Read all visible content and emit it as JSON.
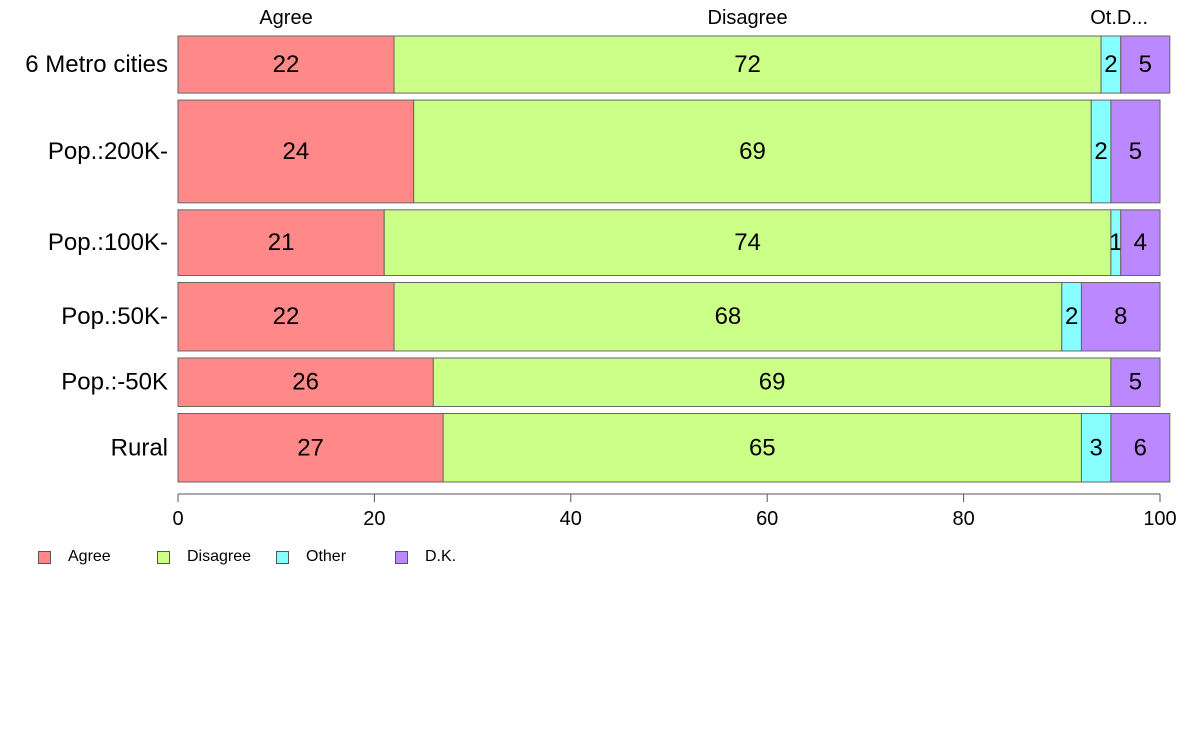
{
  "chart_data": {
    "type": "bar",
    "orientation": "horizontal",
    "stacked": true,
    "categories": [
      "6 Metro cities",
      "Pop.:200K-",
      "Pop.:100K-",
      "Pop.:50K-",
      "Pop.:-50K",
      "Rural"
    ],
    "series": [
      {
        "name": "Agree",
        "color": "#ff8888",
        "values": [
          22,
          24,
          21,
          22,
          26,
          27
        ],
        "labels": [
          "22",
          "24",
          "21",
          "22",
          "26",
          "27"
        ]
      },
      {
        "name": "Disagree",
        "color": "#ccff88",
        "values": [
          72,
          69,
          74,
          68,
          69,
          65
        ],
        "labels": [
          "72",
          "69",
          "74",
          "68",
          "69",
          "65"
        ]
      },
      {
        "name": "Other",
        "color": "#88ffff",
        "values": [
          2,
          2,
          1,
          2,
          0,
          3
        ],
        "labels": [
          "2",
          "2",
          "1",
          "2",
          "",
          "3"
        ]
      },
      {
        "name": "D.K.",
        "color": "#bb88ff",
        "values": [
          5,
          5,
          4,
          8,
          5,
          6
        ],
        "labels": [
          "5",
          "5",
          "4",
          "8",
          "5",
          "6"
        ]
      }
    ],
    "relative_row_widths": [
      1.0,
      1.8,
      1.15,
      1.2,
      0.85,
      1.2
    ],
    "top_labels": [
      "Agree",
      "Disagree",
      "Ot.",
      "D..."
    ],
    "xlim": [
      0,
      100
    ],
    "xticks": [
      0,
      20,
      40,
      60,
      80,
      100
    ],
    "grid": false,
    "legend_position": "bottom-left"
  }
}
